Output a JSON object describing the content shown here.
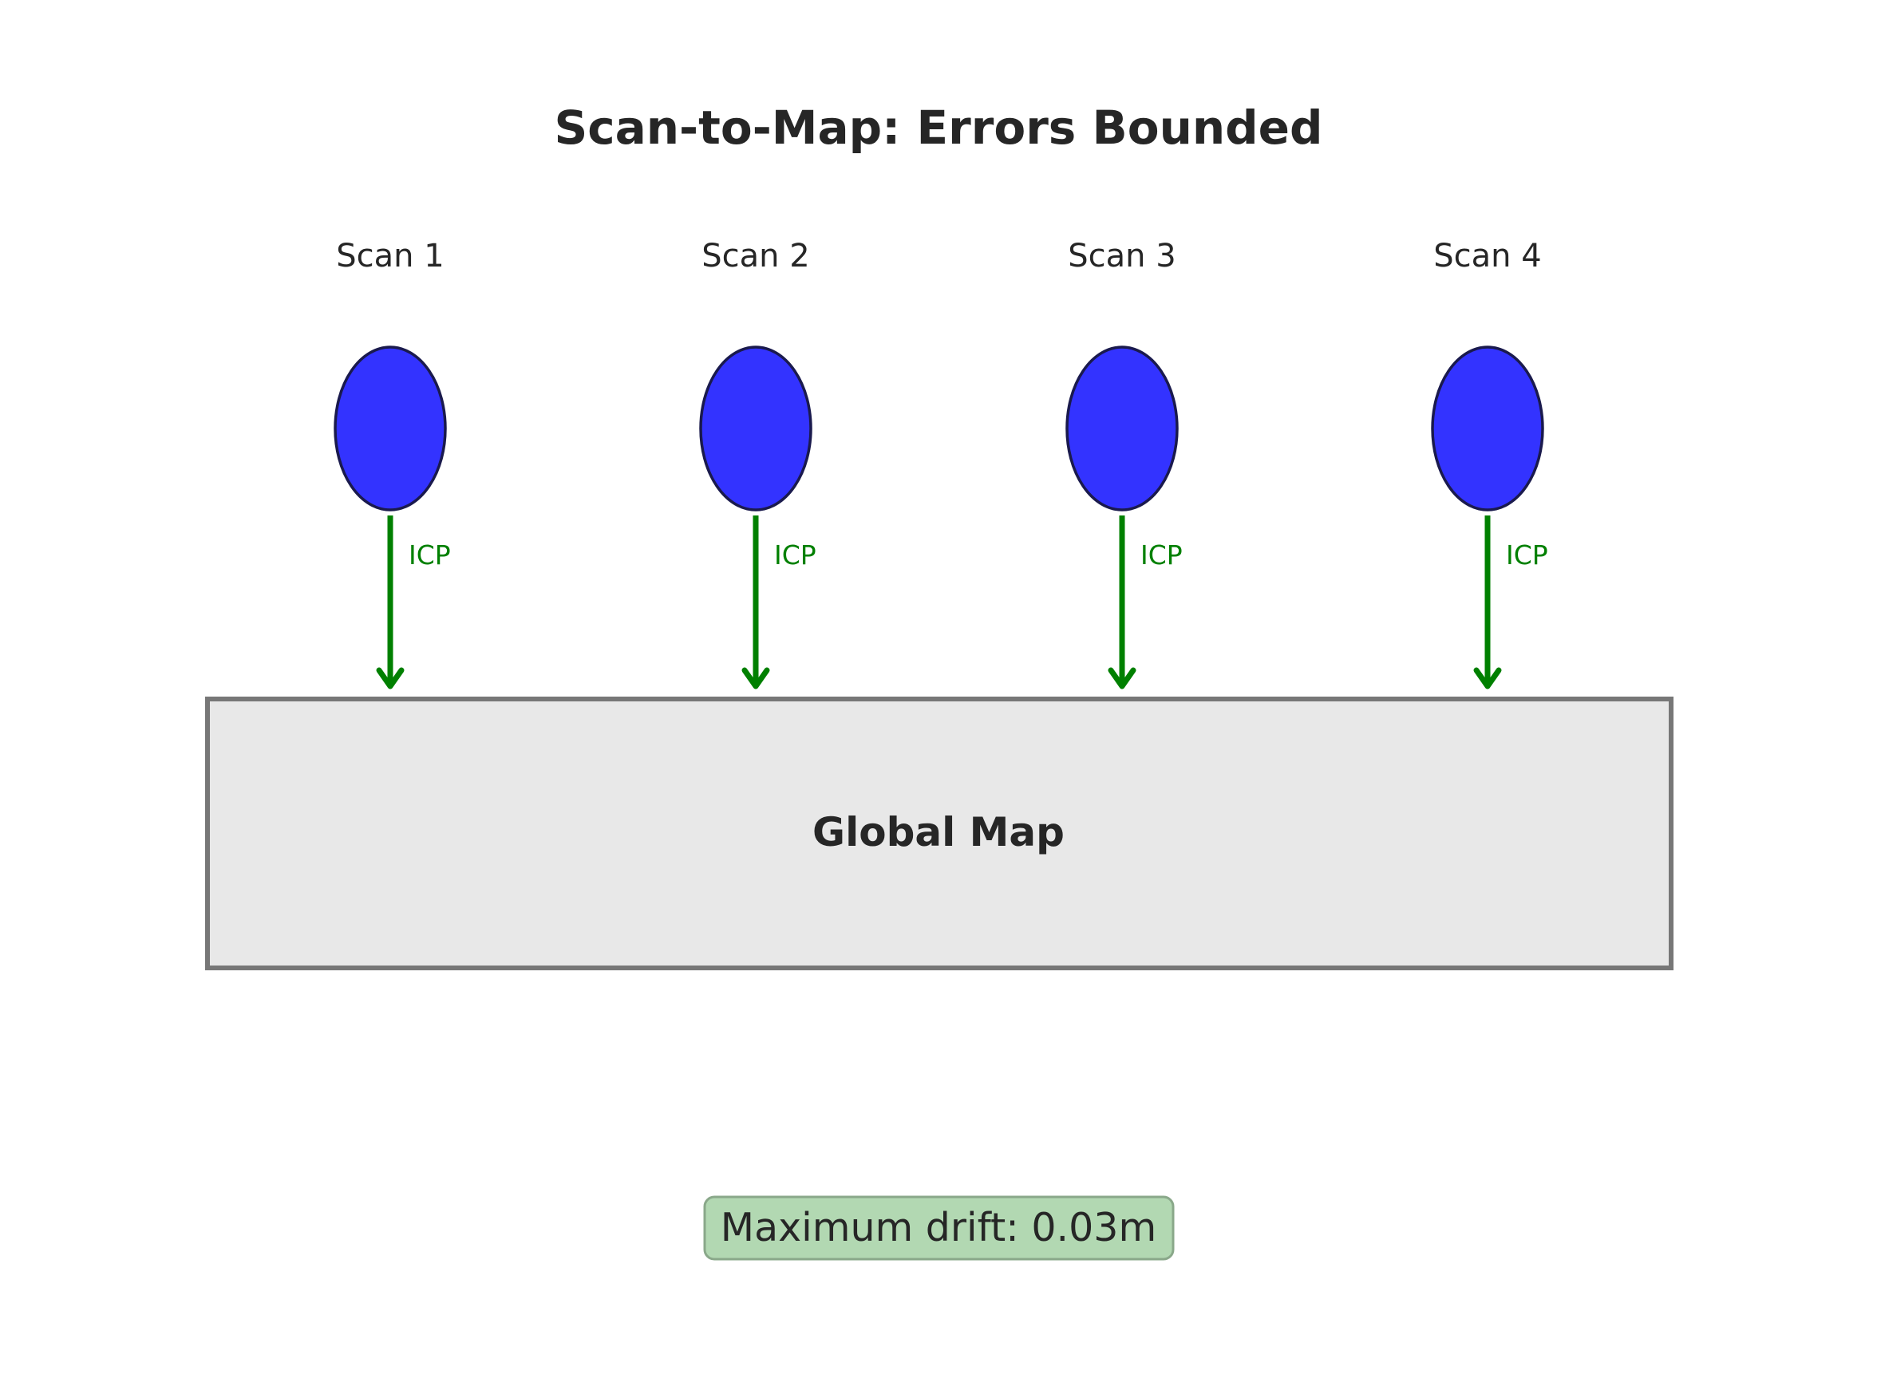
{
  "title": "Scan-to-Map: Errors Bounded",
  "scans": [
    {
      "label": "Scan 1",
      "edge_label": "ICP"
    },
    {
      "label": "Scan 2",
      "edge_label": "ICP"
    },
    {
      "label": "Scan 3",
      "edge_label": "ICP"
    },
    {
      "label": "Scan 4",
      "edge_label": "ICP"
    }
  ],
  "map": {
    "label": "Global Map"
  },
  "drift": {
    "text": "Maximum drift: 0.03m"
  },
  "colors": {
    "scan_fill": "#3333ff",
    "scan_stroke": "#1a1a4d",
    "arrow": "#008000",
    "map_fill": "#e8e8e8",
    "map_stroke": "#777777",
    "drift_fill": "#b2d8b2",
    "drift_stroke": "#8aa88a",
    "text": "#262626"
  }
}
